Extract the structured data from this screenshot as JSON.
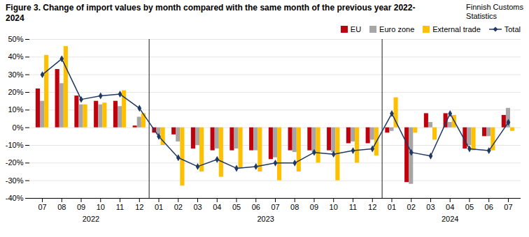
{
  "chart_data": {
    "type": "bar",
    "title": "Figure 3. Change of import values by month compared with the same month of the previous year 2022-2024",
    "subtitle": "Finnish Customs\nStatistics",
    "categories": [
      "07",
      "08",
      "09",
      "10",
      "11",
      "12",
      "01",
      "02",
      "03",
      "04",
      "05",
      "06",
      "07",
      "08",
      "09",
      "10",
      "11",
      "12",
      "01",
      "02",
      "03",
      "04",
      "05",
      "06",
      "07"
    ],
    "groups": [
      {
        "label": "2022",
        "start": 0,
        "end": 5
      },
      {
        "label": "2023",
        "start": 6,
        "end": 17
      },
      {
        "label": "2024",
        "start": 18,
        "end": 24
      }
    ],
    "series": [
      {
        "name": "EU",
        "color": "#c0000c",
        "values": [
          22,
          33,
          18,
          15,
          15,
          1,
          -3,
          -4,
          -12,
          -13,
          -13,
          -13,
          -18,
          -13,
          -13,
          -13,
          -9,
          -9,
          -3,
          -31,
          8,
          8,
          -12,
          -5,
          7
        ]
      },
      {
        "name": "Euro zone",
        "color": "#a6a6a6",
        "values": [
          15,
          25,
          13,
          13,
          12,
          6,
          -4,
          -8,
          -10,
          -12,
          -12,
          -13,
          -17,
          -14,
          -14,
          -14,
          -8,
          -7,
          -2,
          -32,
          3,
          3,
          -10,
          -5,
          11
        ]
      },
      {
        "name": "External trade",
        "color": "#ffc000",
        "values": [
          41,
          46,
          13,
          14,
          21,
          8,
          -10,
          -33,
          -25,
          -28,
          -23,
          -25,
          -30,
          -25,
          -20,
          -30,
          -20,
          -16,
          17,
          -3,
          -7,
          7,
          -13,
          -13,
          -2
        ]
      },
      {
        "name": "Total",
        "type": "line",
        "marker": "diamond",
        "color": "#1f3864",
        "values": [
          30,
          39,
          16,
          18,
          19,
          11,
          -5,
          -17,
          -22,
          -18,
          -23,
          -22,
          -20,
          -20,
          -14,
          -15,
          -13,
          -12,
          8,
          -14,
          -16,
          8,
          -12,
          -13,
          3
        ]
      }
    ],
    "ylim": [
      -40,
      50
    ],
    "yticks": [
      {
        "value": -40,
        "label": "-40%"
      },
      {
        "value": -30,
        "label": "-30%"
      },
      {
        "value": -20,
        "label": "-20%"
      },
      {
        "value": -10,
        "label": "-10%"
      },
      {
        "value": 0,
        "label": "0%"
      },
      {
        "value": 10,
        "label": "10%"
      },
      {
        "value": 20,
        "label": "20%"
      },
      {
        "value": 30,
        "label": "30%"
      },
      {
        "value": 40,
        "label": "40%"
      },
      {
        "value": 50,
        "label": "50%"
      }
    ],
    "grid": true,
    "legend": "upper right"
  }
}
